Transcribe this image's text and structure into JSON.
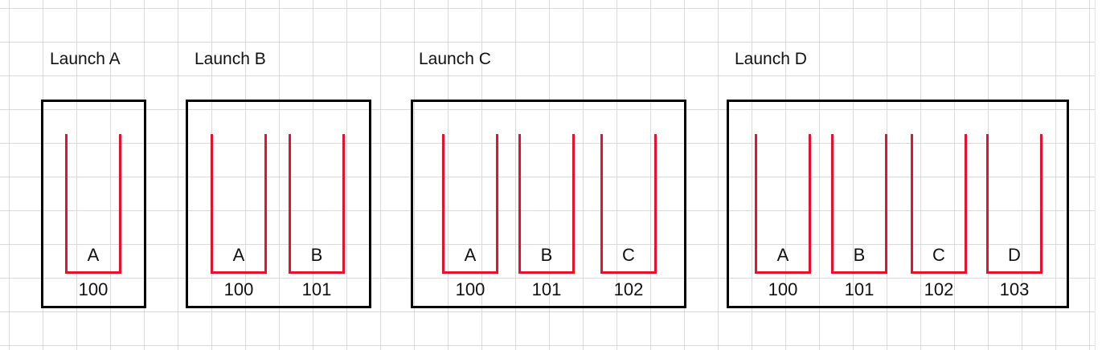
{
  "colors": {
    "slot_outline": "#e8112d",
    "box_border": "#000000",
    "grid_line": "#d9d9d9"
  },
  "launches": [
    {
      "title": "Launch A",
      "slots": [
        {
          "letter": "A",
          "number": "100"
        }
      ]
    },
    {
      "title": "Launch B",
      "slots": [
        {
          "letter": "A",
          "number": "100"
        },
        {
          "letter": "B",
          "number": "101"
        }
      ]
    },
    {
      "title": "Launch C",
      "slots": [
        {
          "letter": "A",
          "number": "100"
        },
        {
          "letter": "B",
          "number": "101"
        },
        {
          "letter": "C",
          "number": "102"
        }
      ]
    },
    {
      "title": "Launch D",
      "slots": [
        {
          "letter": "A",
          "number": "100"
        },
        {
          "letter": "B",
          "number": "101"
        },
        {
          "letter": "C",
          "number": "102"
        },
        {
          "letter": "D",
          "number": "103"
        }
      ]
    }
  ]
}
